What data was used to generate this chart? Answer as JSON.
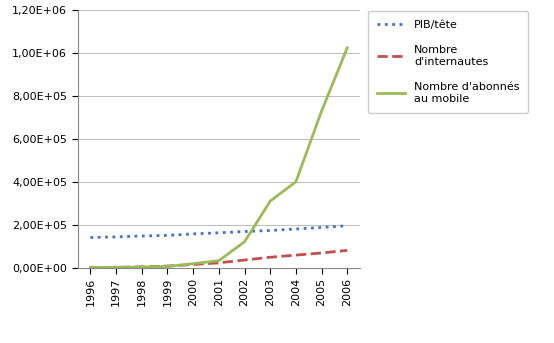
{
  "years": [
    1996,
    1997,
    1998,
    1999,
    2000,
    2001,
    2002,
    2003,
    2004,
    2005,
    2006
  ],
  "pib_tete": [
    140000,
    143000,
    147000,
    150000,
    157000,
    162000,
    168000,
    173000,
    180000,
    187000,
    195000
  ],
  "internautes": [
    500,
    1000,
    3000,
    7000,
    14000,
    22000,
    35000,
    48000,
    58000,
    68000,
    80000
  ],
  "mobile": [
    500,
    1000,
    2000,
    5000,
    18000,
    32000,
    120000,
    310000,
    400000,
    730000,
    1025000
  ],
  "pib_color": "#4472C4",
  "internet_color": "#C0504D",
  "mobile_color": "#9BBB59",
  "ylim": [
    0,
    1200000
  ],
  "yticks": [
    0,
    200000,
    400000,
    600000,
    800000,
    1000000,
    1200000
  ],
  "ytick_labels": [
    "0,00E+00",
    "2,00E+05",
    "4,00E+05",
    "6,00E+05",
    "8,00E+05",
    "1,00E+06",
    "1,20E+06"
  ],
  "xtick_labels": [
    "1996",
    "1997",
    "1998",
    "1999",
    "2000",
    "2001",
    "2002",
    "2003",
    "2004",
    "2005",
    "2006"
  ],
  "legend_pib": "PIB/tête",
  "legend_internet": "Nombre\nd'internautes",
  "legend_mobile": "Nombre d'abonnés\nau mobile",
  "background_color": "#FFFFFF",
  "plot_bg_color": "#FFFFFF"
}
